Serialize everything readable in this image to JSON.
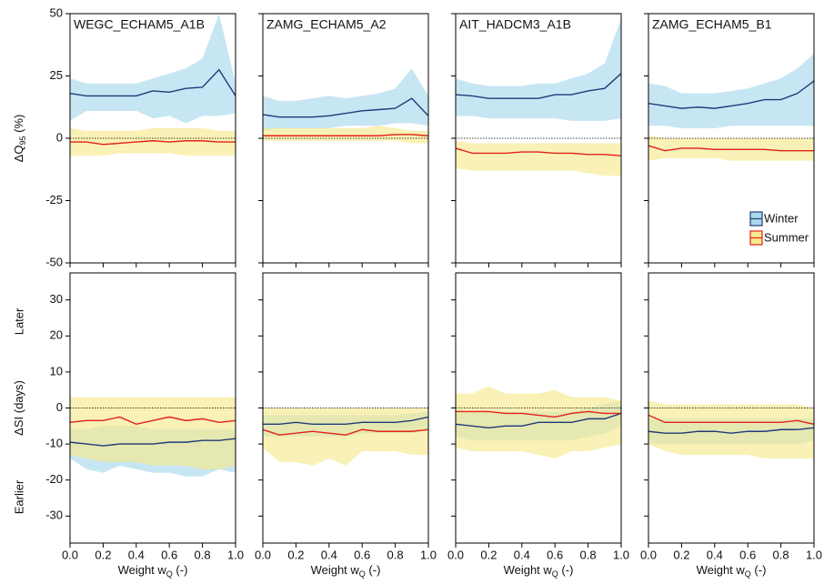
{
  "chart_data": [
    {
      "type": "line",
      "title": "WEGC_ECHAM5_A1B",
      "ylabel": {
        "text": "ΔQ",
        "sub": "95",
        "tail": " (%)"
      },
      "x": [
        0,
        0.1,
        0.2,
        0.3,
        0.4,
        0.5,
        0.6,
        0.7,
        0.8,
        0.9,
        1
      ],
      "xlim": [
        0,
        1
      ],
      "xticks": [
        0,
        0.2,
        0.4,
        0.6,
        0.8,
        1
      ],
      "xtick_labels": false,
      "ylim": [
        -50,
        50
      ],
      "yticks": [
        50,
        25,
        0,
        -25,
        -50
      ],
      "ytick_labels": true,
      "hline": 0,
      "series": [
        {
          "name": "Winter",
          "color": "#1f3b7a",
          "fill": "#a9d9ec",
          "values": [
            18,
            17,
            17,
            17,
            17,
            19,
            18.5,
            20,
            20.5,
            27.5,
            17
          ],
          "upper": [
            24,
            22,
            22,
            22,
            22,
            24,
            26,
            28,
            32,
            50,
            22
          ],
          "lower": [
            7,
            11,
            11,
            11,
            11,
            8,
            9,
            6,
            9,
            9,
            10
          ]
        },
        {
          "name": "Summer",
          "color": "#e32219",
          "fill": "#f6e98e",
          "values": [
            -1.5,
            -1.5,
            -2.5,
            -2,
            -1.5,
            -1,
            -1.5,
            -1,
            -1,
            -1.5,
            -1.5
          ],
          "upper": [
            4,
            3,
            3,
            3,
            3,
            4,
            4,
            4,
            4,
            3,
            3
          ],
          "lower": [
            -7,
            -7,
            -7,
            -6,
            -6,
            -6,
            -6,
            -7,
            -7,
            -7,
            -7
          ]
        }
      ]
    },
    {
      "type": "line",
      "title": "ZAMG_ECHAM5_A2",
      "x": [
        0,
        0.1,
        0.2,
        0.3,
        0.4,
        0.5,
        0.6,
        0.7,
        0.8,
        0.9,
        1
      ],
      "xlim": [
        0,
        1
      ],
      "xticks": [
        0,
        0.2,
        0.4,
        0.6,
        0.8,
        1
      ],
      "xtick_labels": false,
      "ylim": [
        -50,
        50
      ],
      "yticks": [
        50,
        25,
        0,
        -25,
        -50
      ],
      "ytick_labels": false,
      "hline": 0,
      "series": [
        {
          "name": "Winter",
          "color": "#1f3b7a",
          "fill": "#a9d9ec",
          "values": [
            9.5,
            8.5,
            8.5,
            8.5,
            9,
            10,
            11,
            11.5,
            12,
            16,
            9
          ],
          "upper": [
            17,
            15,
            15,
            16,
            17,
            16,
            17,
            18,
            20,
            28,
            17
          ],
          "lower": [
            3,
            4,
            4,
            4,
            4,
            5,
            5,
            5,
            6,
            6,
            5
          ]
        },
        {
          "name": "Summer",
          "color": "#e32219",
          "fill": "#f6e98e",
          "values": [
            1,
            1,
            1,
            1,
            1,
            1,
            1,
            1,
            1.5,
            1.5,
            1
          ],
          "upper": [
            4,
            4,
            4,
            4,
            4,
            4,
            4,
            5,
            4,
            3,
            3
          ],
          "lower": [
            -1,
            -1,
            -1,
            -1,
            -1,
            -1,
            -1,
            -1,
            -1,
            -2,
            -2
          ]
        }
      ]
    },
    {
      "type": "line",
      "title": "AIT_HADCM3_A1B",
      "x": [
        0,
        0.1,
        0.2,
        0.3,
        0.4,
        0.5,
        0.6,
        0.7,
        0.8,
        0.9,
        1
      ],
      "xlim": [
        0,
        1
      ],
      "xticks": [
        0,
        0.2,
        0.4,
        0.6,
        0.8,
        1
      ],
      "xtick_labels": false,
      "ylim": [
        -50,
        50
      ],
      "yticks": [
        50,
        25,
        0,
        -25,
        -50
      ],
      "ytick_labels": false,
      "hline": 0,
      "series": [
        {
          "name": "Winter",
          "color": "#1f3b7a",
          "fill": "#a9d9ec",
          "values": [
            17.5,
            17,
            16,
            16,
            16,
            16,
            17.5,
            17.5,
            19,
            20,
            26
          ],
          "upper": [
            24,
            22,
            21,
            21,
            21,
            22,
            22,
            24,
            26,
            30,
            48
          ],
          "lower": [
            9,
            9,
            8,
            8,
            8,
            8,
            8,
            7,
            7,
            7,
            8
          ]
        },
        {
          "name": "Summer",
          "color": "#e32219",
          "fill": "#f6e98e",
          "values": [
            -4,
            -6,
            -6,
            -6,
            -5.5,
            -5.5,
            -6,
            -6,
            -6.5,
            -6.5,
            -7
          ],
          "upper": [
            -1,
            -2,
            -2,
            -2,
            -2,
            -2,
            -2,
            -2,
            -2,
            -2,
            -2
          ],
          "lower": [
            -12,
            -13,
            -13,
            -13,
            -13,
            -13,
            -13,
            -13,
            -14,
            -15,
            -15
          ]
        }
      ]
    },
    {
      "type": "line",
      "title": "ZAMG_ECHAM5_B1",
      "legend": "lower right",
      "x": [
        0,
        0.1,
        0.2,
        0.3,
        0.4,
        0.5,
        0.6,
        0.7,
        0.8,
        0.9,
        1
      ],
      "xlim": [
        0,
        1
      ],
      "xticks": [
        0,
        0.2,
        0.4,
        0.6,
        0.8,
        1
      ],
      "xtick_labels": false,
      "ylim": [
        -50,
        50
      ],
      "yticks": [
        50,
        25,
        0,
        -25,
        -50
      ],
      "ytick_labels": false,
      "hline": 0,
      "series": [
        {
          "name": "Winter",
          "color": "#1f3b7a",
          "fill": "#a9d9ec",
          "values": [
            14,
            13,
            12,
            12.5,
            12,
            13,
            14,
            15.5,
            15.5,
            18,
            23
          ],
          "upper": [
            22,
            21,
            18,
            18,
            18,
            19,
            20,
            22,
            24,
            28,
            34
          ],
          "lower": [
            5,
            5,
            4,
            4,
            4,
            5,
            5,
            5,
            5,
            5,
            5
          ]
        },
        {
          "name": "Summer",
          "color": "#e32219",
          "fill": "#f6e98e",
          "values": [
            -3,
            -5,
            -4,
            -4,
            -4.5,
            -4.5,
            -4.5,
            -4.5,
            -5,
            -5,
            -5
          ],
          "upper": [
            1,
            0,
            0,
            0,
            0,
            0,
            0,
            0,
            0,
            0,
            0
          ],
          "lower": [
            -9,
            -8,
            -8,
            -8,
            -8,
            -9,
            -9,
            -9,
            -9,
            -9,
            -9
          ]
        }
      ]
    },
    {
      "type": "line",
      "ylabel": {
        "text": "ΔSI (days)"
      },
      "annotations": {
        "top": "Later",
        "bottom": "Earlier"
      },
      "xlabel": {
        "text": "Weight w",
        "sub": "Q",
        "tail": " (-)"
      },
      "x": [
        0,
        0.1,
        0.2,
        0.3,
        0.4,
        0.5,
        0.6,
        0.7,
        0.8,
        0.9,
        1
      ],
      "xlim": [
        0,
        1
      ],
      "xticks": [
        {
          "value": 0,
          "label": "0.0"
        },
        0.2,
        0.4,
        0.6,
        0.8,
        {
          "value": 1,
          "label": "1.0"
        }
      ],
      "xtick_labels": true,
      "ylim": [
        -37.5,
        37.5
      ],
      "yticks": [
        30,
        20,
        10,
        0,
        -10,
        -20,
        -30
      ],
      "ytick_labels": true,
      "hline": 0,
      "series": [
        {
          "name": "Winter",
          "color": "#1f3b7a",
          "fill": "#a9d9ec",
          "values": [
            -9.5,
            -10,
            -10.5,
            -10,
            -10,
            -10,
            -9.5,
            -9.5,
            -9,
            -9,
            -8.5
          ],
          "upper": [
            -6,
            -6,
            -5,
            -5,
            -5,
            -6,
            -6,
            -6,
            -6,
            -6,
            -6
          ],
          "lower": [
            -14,
            -17,
            -18,
            -16,
            -17,
            -18,
            -18,
            -19,
            -19,
            -17,
            -18
          ]
        },
        {
          "name": "Summer",
          "color": "#e32219",
          "fill": "#f6e98e",
          "values": [
            -4,
            -3.5,
            -3.5,
            -2.5,
            -4.5,
            -3.5,
            -2.5,
            -3.5,
            -3,
            -4,
            -3.5
          ],
          "upper": [
            3,
            3,
            3,
            3,
            3,
            3,
            3,
            3,
            3,
            3,
            3
          ],
          "lower": [
            -13,
            -14,
            -15,
            -15,
            -15,
            -16,
            -16,
            -16,
            -17,
            -17,
            -16
          ]
        }
      ]
    },
    {
      "type": "line",
      "xlabel": {
        "text": "Weight w",
        "sub": "Q",
        "tail": " (-)"
      },
      "x": [
        0,
        0.1,
        0.2,
        0.3,
        0.4,
        0.5,
        0.6,
        0.7,
        0.8,
        0.9,
        1
      ],
      "xlim": [
        0,
        1
      ],
      "xticks": [
        {
          "value": 0,
          "label": "0.0"
        },
        0.2,
        0.4,
        0.6,
        0.8,
        {
          "value": 1,
          "label": "1.0"
        }
      ],
      "xtick_labels": true,
      "ylim": [
        -37.5,
        37.5
      ],
      "yticks": [
        30,
        20,
        10,
        0,
        -10,
        -20,
        -30
      ],
      "ytick_labels": false,
      "hline": 0,
      "series": [
        {
          "name": "Winter",
          "color": "#1f3b7a",
          "fill": "#a9d9ec",
          "values": [
            -4.5,
            -4.5,
            -4,
            -4.5,
            -4.5,
            -4.5,
            -4,
            -4,
            -4,
            -3.5,
            -2.5
          ],
          "upper": [
            -2,
            -2,
            -2,
            -2,
            -2,
            -2,
            -2,
            -2,
            -2,
            -1.5,
            -1
          ],
          "lower": [
            -8,
            -8,
            -8,
            -8,
            -8,
            -8,
            -7,
            -7,
            -7,
            -7,
            -6
          ]
        },
        {
          "name": "Summer",
          "color": "#e32219",
          "fill": "#f6e98e",
          "values": [
            -6,
            -7.5,
            -7,
            -6.5,
            -7,
            -7.5,
            -6,
            -6.5,
            -6.5,
            -6.5,
            -6
          ],
          "upper": [
            0,
            0,
            0,
            0,
            0,
            0,
            0,
            0,
            0,
            0,
            0
          ],
          "lower": [
            -11,
            -15,
            -15,
            -16,
            -14,
            -16,
            -12,
            -12,
            -12,
            -13,
            -13
          ]
        }
      ]
    },
    {
      "type": "line",
      "xlabel": {
        "text": "Weight w",
        "sub": "Q",
        "tail": " (-)"
      },
      "x": [
        0,
        0.1,
        0.2,
        0.3,
        0.4,
        0.5,
        0.6,
        0.7,
        0.8,
        0.9,
        1
      ],
      "xlim": [
        0,
        1
      ],
      "xticks": [
        {
          "value": 0,
          "label": "0.0"
        },
        0.2,
        0.4,
        0.6,
        0.8,
        {
          "value": 1,
          "label": "1.0"
        }
      ],
      "xtick_labels": true,
      "ylim": [
        -37.5,
        37.5
      ],
      "yticks": [
        30,
        20,
        10,
        0,
        -10,
        -20,
        -30
      ],
      "ytick_labels": false,
      "hline": 0,
      "series": [
        {
          "name": "Winter",
          "color": "#1f3b7a",
          "fill": "#a9d9ec",
          "values": [
            -4.5,
            -5,
            -5.5,
            -5,
            -5,
            -4,
            -4,
            -4,
            -3,
            -3,
            -1.5
          ],
          "upper": [
            -1,
            -1,
            -1,
            -1,
            -1,
            -1,
            -1,
            -1,
            0,
            1,
            2
          ],
          "lower": [
            -8,
            -9,
            -9,
            -9,
            -9,
            -9,
            -9,
            -9,
            -8,
            -7,
            -5
          ]
        },
        {
          "name": "Summer",
          "color": "#e32219",
          "fill": "#f6e98e",
          "values": [
            -1,
            -1,
            -1,
            -1.5,
            -1.5,
            -2,
            -2.5,
            -1.5,
            -1,
            -1.5,
            -1.5
          ],
          "upper": [
            4,
            4,
            6,
            4,
            4,
            4,
            5,
            3,
            3,
            3,
            2
          ],
          "lower": [
            -11,
            -12,
            -12,
            -12,
            -12,
            -13,
            -14,
            -12,
            -12,
            -11,
            -10
          ]
        }
      ]
    },
    {
      "type": "line",
      "xlabel": {
        "text": "Weight w",
        "sub": "Q",
        "tail": " (-)"
      },
      "x": [
        0,
        0.1,
        0.2,
        0.3,
        0.4,
        0.5,
        0.6,
        0.7,
        0.8,
        0.9,
        1
      ],
      "xlim": [
        0,
        1
      ],
      "xticks": [
        {
          "value": 0,
          "label": "0.0"
        },
        0.2,
        0.4,
        0.6,
        0.8,
        {
          "value": 1,
          "label": "1.0"
        }
      ],
      "xtick_labels": true,
      "ylim": [
        -37.5,
        37.5
      ],
      "yticks": [
        30,
        20,
        10,
        0,
        -10,
        -20,
        -30
      ],
      "ytick_labels": false,
      "hline": 0,
      "series": [
        {
          "name": "Winter",
          "color": "#1f3b7a",
          "fill": "#a9d9ec",
          "values": [
            -6.5,
            -7,
            -7,
            -6.5,
            -6.5,
            -7,
            -6.5,
            -6.5,
            -6,
            -6,
            -5.5
          ],
          "upper": [
            -3,
            -3,
            -3,
            -3,
            -3,
            -3,
            -3,
            -3,
            -3,
            -3,
            -3
          ],
          "lower": [
            -10,
            -10,
            -10,
            -10,
            -10,
            -10,
            -10,
            -10,
            -10,
            -10,
            -9
          ]
        },
        {
          "name": "Summer",
          "color": "#e32219",
          "fill": "#f6e98e",
          "values": [
            -2,
            -4,
            -4,
            -4,
            -4,
            -4,
            -4,
            -4,
            -4,
            -3.5,
            -4.5
          ],
          "upper": [
            2,
            1,
            1,
            1,
            1,
            1,
            1,
            1,
            1,
            1,
            0
          ],
          "lower": [
            -10,
            -12,
            -13,
            -13,
            -13,
            -13,
            -13,
            -14,
            -14,
            -14,
            -14
          ]
        }
      ]
    }
  ]
}
